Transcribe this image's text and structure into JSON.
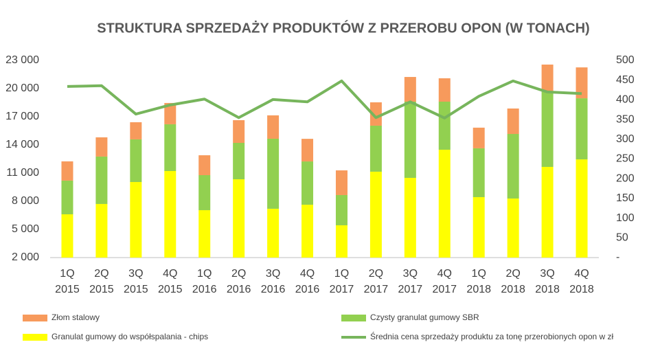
{
  "chart_data": {
    "type": "bar",
    "title": "STRUKTURA SPRZEDAŻY PRODUKTÓW Z PRZEROBU OPON (W TONACH)",
    "categories": [
      [
        "1Q",
        "2015"
      ],
      [
        "2Q",
        "2015"
      ],
      [
        "3Q",
        "2015"
      ],
      [
        "4Q",
        "2015"
      ],
      [
        "1Q",
        "2016"
      ],
      [
        "2Q",
        "2016"
      ],
      [
        "3Q",
        "2016"
      ],
      [
        "4Q",
        "2016"
      ],
      [
        "1Q",
        "2017"
      ],
      [
        "2Q",
        "2017"
      ],
      [
        "3Q",
        "2017"
      ],
      [
        "4Q",
        "2017"
      ],
      [
        "1Q",
        "2018"
      ],
      [
        "2Q",
        "2018"
      ],
      [
        "3Q",
        "2018"
      ],
      [
        "4Q",
        "2018"
      ]
    ],
    "stacked": true,
    "series": [
      {
        "name": "Granulat gumowy do współspalania - chips",
        "color": "#ffff00",
        "values": [
          6610,
          7710,
          10050,
          11220,
          7050,
          10340,
          7200,
          7630,
          5440,
          11150,
          10490,
          13490,
          8440,
          8290,
          11660,
          12460
        ]
      },
      {
        "name": "Czysty granulat gumowy SBR",
        "color": "#92d050",
        "values": [
          3590,
          5050,
          4540,
          4980,
          3730,
          3880,
          7460,
          4610,
          3220,
          4900,
          8120,
          5120,
          5200,
          6880,
          8050,
          6510
        ]
      },
      {
        "name": "Złom stalowy",
        "color": "#f79a5c",
        "values": [
          2050,
          2050,
          1830,
          2270,
          2120,
          2420,
          2490,
          2410,
          2630,
          2490,
          2630,
          2490,
          2200,
          2710,
          2850,
          3290
        ]
      },
      {
        "name": "Średnia cena sprzedaży produktu za tonę przerobionych opon w zł",
        "color": "#77b55c",
        "type": "line",
        "axis": "y2",
        "values": [
          434,
          436,
          364,
          387,
          402,
          355,
          401,
          395,
          448,
          355,
          395,
          354,
          409,
          448,
          420,
          416
        ]
      }
    ],
    "ylim": [
      2000,
      23000
    ],
    "yticks": [
      {
        "value": 2000,
        "label": "2 000"
      },
      {
        "value": 5000,
        "label": "5 000"
      },
      {
        "value": 8000,
        "label": "8 000"
      },
      {
        "value": 11000,
        "label": "11 000"
      },
      {
        "value": 14000,
        "label": "14 000"
      },
      {
        "value": 17000,
        "label": "17 000"
      },
      {
        "value": 20000,
        "label": "20 000"
      },
      {
        "value": 23000,
        "label": "23 000"
      }
    ],
    "y2lim": [
      0,
      500
    ],
    "y2ticks": [
      {
        "value": 0,
        "label": "-"
      },
      50,
      100,
      150,
      200,
      250,
      300,
      350,
      400,
      450,
      500
    ],
    "grid": false,
    "legend": "bottom"
  }
}
